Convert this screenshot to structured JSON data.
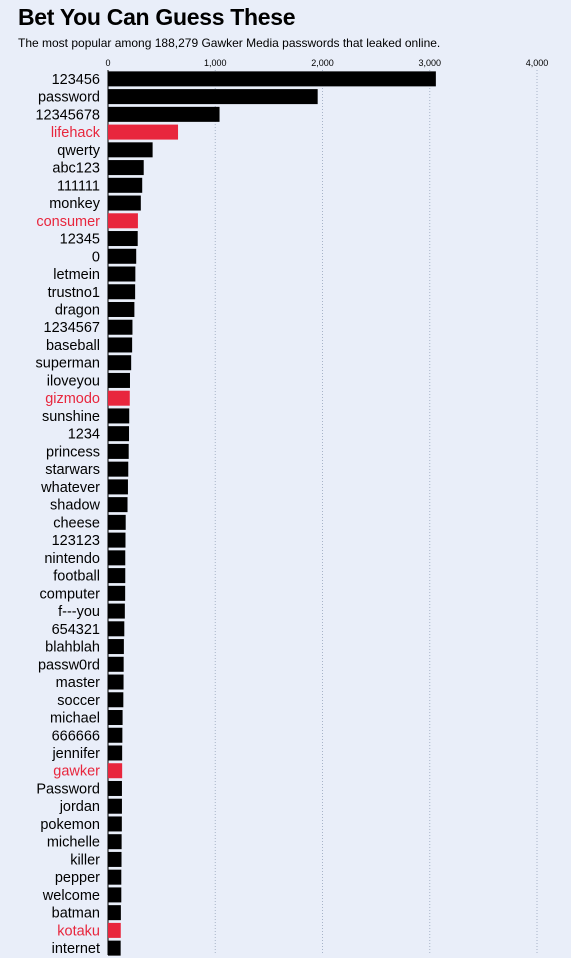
{
  "chart_data": {
    "type": "bar",
    "orientation": "horizontal",
    "title": "Bet You Can Guess These",
    "subtitle": "The most popular among 188,279 Gawker Media passwords that leaked online.",
    "xlim": [
      0,
      4000
    ],
    "xticks": [
      0,
      1000,
      2000,
      3000,
      4000
    ],
    "xtick_labels": [
      "0",
      "1,000",
      "2,000",
      "3,000",
      "4,000"
    ],
    "grid": "vertical dotted",
    "colors": {
      "default": "#000000",
      "highlight": "#e8263d",
      "grid": "#a7b3c8",
      "background": "#e9eef9"
    },
    "categories": [
      "123456",
      "password",
      "12345678",
      "lifehack",
      "qwerty",
      "abc123",
      "111111",
      "monkey",
      "consumer",
      "12345",
      "0",
      "letmein",
      "trustno1",
      "dragon",
      "1234567",
      "baseball",
      "superman",
      "iloveyou",
      "gizmodo",
      "sunshine",
      "1234",
      "princess",
      "starwars",
      "whatever",
      "shadow",
      "cheese",
      "123123",
      "nintendo",
      "football",
      "computer",
      "f---you",
      "654321",
      "blahblah",
      "passw0rd",
      "master",
      "soccer",
      "michael",
      "666666",
      "jennifer",
      "gawker",
      "Password",
      "jordan",
      "pokemon",
      "michelle",
      "killer",
      "pepper",
      "welcome",
      "batman",
      "kotaku",
      "internet"
    ],
    "values": [
      3057,
      1955,
      1040,
      653,
      416,
      333,
      319,
      306,
      279,
      277,
      263,
      255,
      253,
      246,
      228,
      225,
      216,
      205,
      203,
      198,
      196,
      193,
      189,
      186,
      182,
      165,
      163,
      161,
      161,
      160,
      157,
      152,
      148,
      146,
      145,
      143,
      136,
      134,
      132,
      132,
      130,
      130,
      129,
      127,
      126,
      124,
      124,
      120,
      119,
      118
    ],
    "highlighted": [
      "lifehack",
      "consumer",
      "gizmodo",
      "gawker",
      "kotaku"
    ]
  }
}
